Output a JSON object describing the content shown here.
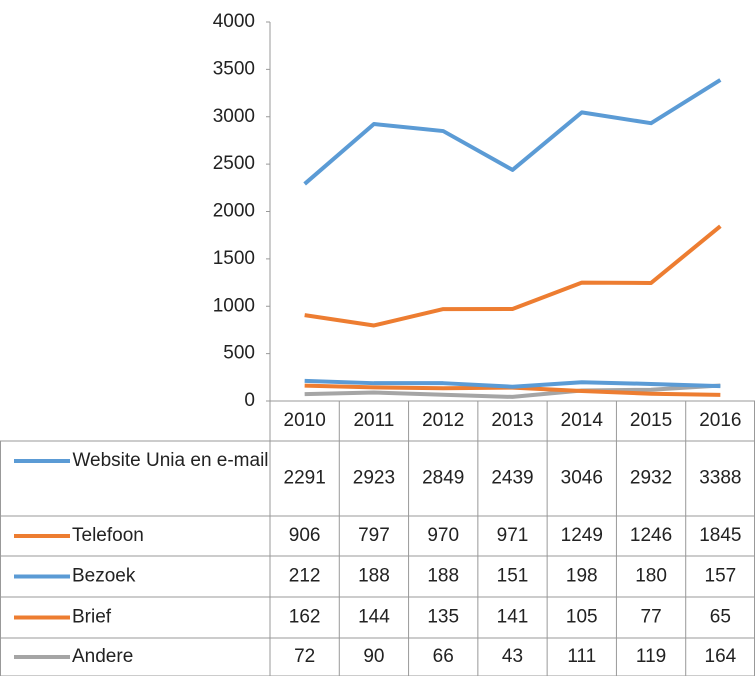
{
  "chart_data": {
    "type": "line",
    "categories": [
      "2010",
      "2011",
      "2012",
      "2013",
      "2014",
      "2015",
      "2016"
    ],
    "series": [
      {
        "name": "Website Unia en e-mail",
        "color": "#5b9bd5",
        "values": [
          2291,
          2923,
          2849,
          2439,
          3046,
          2932,
          3388
        ]
      },
      {
        "name": "Telefoon",
        "color": "#ed7d31",
        "values": [
          906,
          797,
          970,
          971,
          1249,
          1246,
          1845
        ]
      },
      {
        "name": "Bezoek",
        "color": "#5b9bd5",
        "values": [
          212,
          188,
          188,
          151,
          198,
          180,
          157
        ]
      },
      {
        "name": "Brief",
        "color": "#ed7d31",
        "values": [
          162,
          144,
          135,
          141,
          105,
          77,
          65
        ]
      },
      {
        "name": "Andere",
        "color": "#a5a5a5",
        "values": [
          72,
          90,
          66,
          43,
          111,
          119,
          164
        ]
      }
    ],
    "ylim": [
      0,
      4000
    ],
    "yticks": [
      0,
      500,
      1000,
      1500,
      2000,
      2500,
      3000,
      3500,
      4000
    ],
    "grid": false
  }
}
